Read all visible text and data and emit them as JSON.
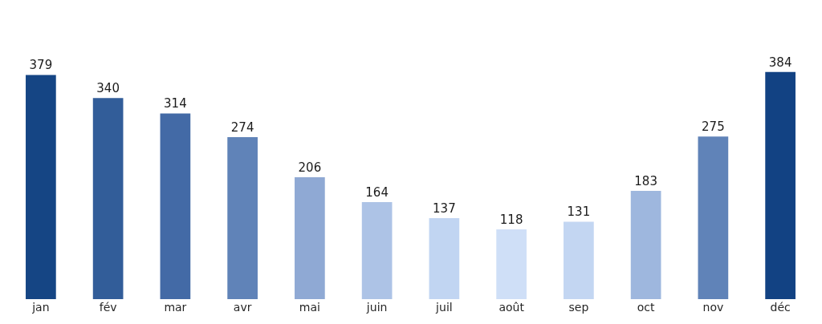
{
  "chart_data": {
    "type": "bar",
    "categories": [
      "jan",
      "fév",
      "mar",
      "avr",
      "mai",
      "juin",
      "juil",
      "août",
      "sep",
      "oct",
      "nov",
      "déc"
    ],
    "values": [
      379,
      340,
      314,
      274,
      206,
      164,
      137,
      118,
      131,
      183,
      275,
      384
    ],
    "colors": [
      "#154584",
      "#325d99",
      "#436aa6",
      "#6083b8",
      "#8fa9d4",
      "#adc3e6",
      "#c1d5f2",
      "#cfdff7",
      "#c3d6f2",
      "#9eb7de",
      "#6083b8",
      "#124283"
    ],
    "data_labels": true,
    "tick_labels": "x"
  }
}
